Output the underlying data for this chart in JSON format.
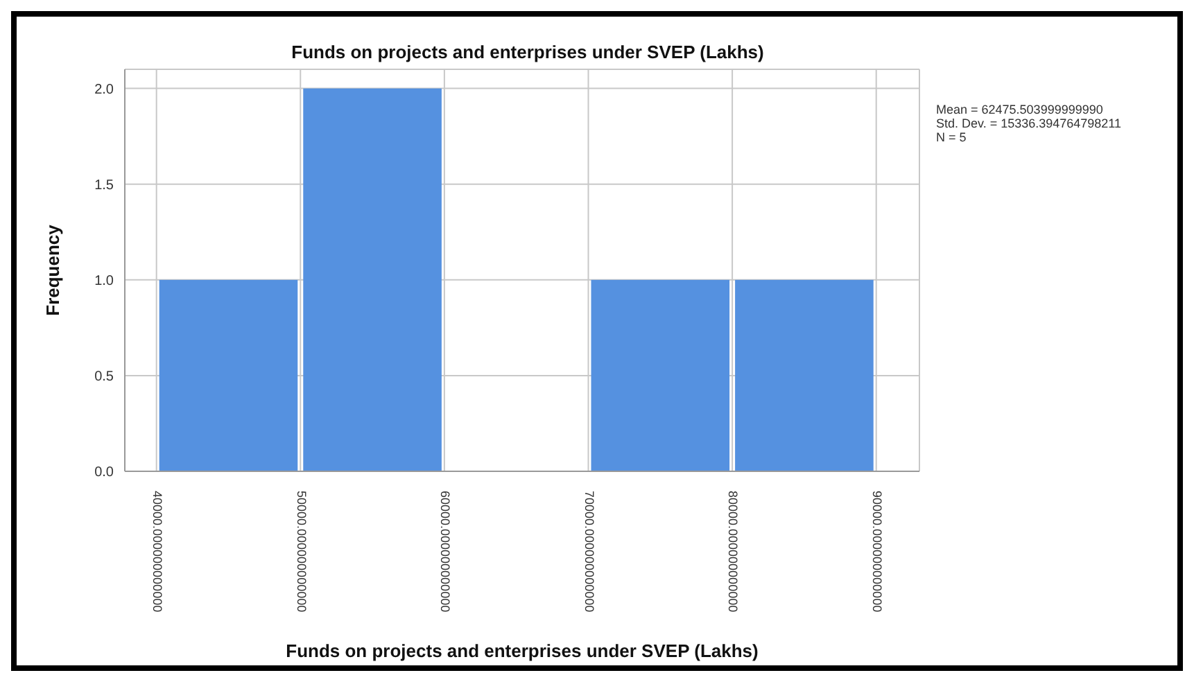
{
  "chart_data": {
    "type": "histogram",
    "title": "Funds on projects  and enterprises under SVEP (Lakhs)",
    "xlabel": "Funds on projects  and enterprises under SVEP (Lakhs)",
    "ylabel": "Frequency",
    "bins": [
      40000,
      50000,
      60000,
      70000,
      80000,
      90000
    ],
    "values": [
      1,
      2,
      0,
      1,
      1
    ],
    "color": "#5591e0",
    "xlim": [
      37800,
      93000
    ],
    "xticks": [
      {
        "value": 40000,
        "label": "40000.000000000000"
      },
      {
        "value": 50000,
        "label": "50000.000000000000"
      },
      {
        "value": 60000,
        "label": "60000.000000000000"
      },
      {
        "value": 70000,
        "label": "70000.000000000000"
      },
      {
        "value": 80000,
        "label": "80000.000000000000"
      },
      {
        "value": 90000,
        "label": "90000.000000000000"
      }
    ],
    "ylim": [
      0,
      2.1
    ],
    "yticks": [
      {
        "value": 0,
        "label": "0.0"
      },
      {
        "value": 0.5,
        "label": "0.5"
      },
      {
        "value": 1,
        "label": "1.0"
      },
      {
        "value": 1.5,
        "label": "1.5"
      },
      {
        "value": 2,
        "label": "2.0"
      }
    ],
    "grid": true,
    "annotations": [
      "Mean = 62475.503999999990",
      "Std. Dev. = 15336.394764798211",
      "N = 5"
    ]
  }
}
